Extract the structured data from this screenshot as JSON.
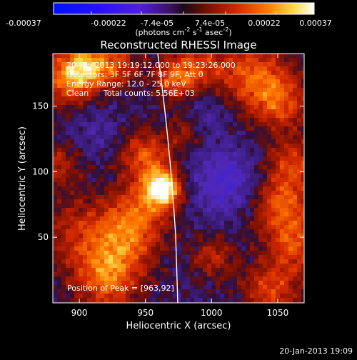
{
  "figure": {
    "title": "Reconstructed RHESSI Image",
    "footer_timestamp": "20-Jan-2013 19:09"
  },
  "colorbar": {
    "tick_labels": [
      "-0.00037",
      "-0.00022",
      "-7.4e-05",
      "7.4e-05",
      "0.00022",
      "0.00037"
    ],
    "units_label_prefix": "(photons cm",
    "units_label_sup1": "-2",
    "units_label_mid": " s",
    "units_label_sup2": "-1",
    "units_label_mid2": " asec",
    "units_label_sup3": "-2",
    "units_label_suffix": ")",
    "range": [
      -0.00037,
      0.00037
    ]
  },
  "annotations": {
    "time_range": "20-Jan-2013 19:19:12.000 to 19:23:26.000",
    "detectors": "Detectors: 3F 5F 6F 7F 8F 9F, Att 0",
    "energy_range": "Energy Range: 12.0 - 25.0 keV",
    "clean_label": "Clean",
    "total_counts": "Total counts: 5.56E+03",
    "peak_position": "Position of Peak = [963,92]"
  },
  "axes": {
    "x_label": "Heliocentric X (arcsec)",
    "y_label": "Heliocentric Y (arcsec)",
    "x_ticks": [
      "900",
      "950",
      "1000",
      "1050"
    ],
    "y_ticks": [
      "50",
      "100",
      "150"
    ]
  },
  "image": {
    "x_range": [
      880,
      1070
    ],
    "y_range": [
      0,
      190
    ],
    "x_tick_values": [
      900,
      950,
      1000,
      1050
    ],
    "y_tick_values": [
      50,
      100,
      150
    ],
    "peak": [
      963,
      92
    ],
    "limb_color": "#ffffff"
  }
}
